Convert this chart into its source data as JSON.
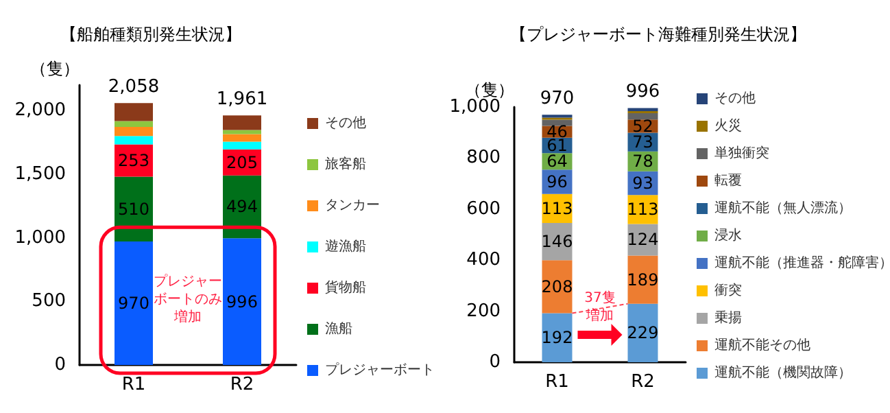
{
  "chart_data": [
    {
      "type": "bar",
      "title": "【船舶種類別発生状況】",
      "ylabel": "（隻）",
      "categories": [
        "R1",
        "R2"
      ],
      "stacked": true,
      "legend": "right",
      "grid": false,
      "series": [
        {
          "name": "プレジャーボート",
          "color": "#0a5cff",
          "values": [
            970,
            996
          ],
          "value_labels": [
            "970",
            "996"
          ]
        },
        {
          "name": "漁船",
          "color": "#00701a",
          "values": [
            510,
            494
          ],
          "value_labels": [
            "510",
            "494"
          ]
        },
        {
          "name": "貨物船",
          "color": "#ff0022",
          "values": [
            253,
            205
          ],
          "value_labels": [
            "253",
            "205"
          ]
        },
        {
          "name": "遊漁船",
          "color": "#00ffff",
          "values": [
            67,
            60
          ]
        },
        {
          "name": "タンカー",
          "color": "#ff8c1a",
          "values": [
            71,
            60
          ]
        },
        {
          "name": "旅客船",
          "color": "#8dc63f",
          "values": [
            46,
            32
          ]
        },
        {
          "name": "その他",
          "color": "#8b3a1a",
          "values": [
            141,
            114
          ]
        }
      ],
      "totals": [
        "2,058",
        "1,961"
      ],
      "ylim": [
        0,
        2200
      ],
      "yticks": [
        0,
        500,
        {
          "value": 1000,
          "label": "1,000"
        },
        {
          "value": 1500,
          "label": "1,500"
        },
        {
          "value": 2000,
          "label": "2,000"
        }
      ],
      "annotations": [
        "プレジャーボートのみ増加"
      ]
    },
    {
      "type": "bar",
      "title": "【プレジャーボート海難種別発生状況】",
      "ylabel": "（隻）",
      "categories": [
        "R1",
        "R2"
      ],
      "stacked": true,
      "legend": "right",
      "grid": false,
      "series": [
        {
          "name": "運航不能（機関故障）",
          "color": "#5b9bd5",
          "values": [
            192,
            229
          ],
          "value_labels": [
            "192",
            "229"
          ]
        },
        {
          "name": "運航不能その他",
          "color": "#ed7d31",
          "values": [
            208,
            189
          ],
          "value_labels": [
            "208",
            "189"
          ]
        },
        {
          "name": "乗揚",
          "color": "#a5a5a5",
          "values": [
            146,
            124
          ],
          "value_labels": [
            "146",
            "124"
          ]
        },
        {
          "name": "衝突",
          "color": "#ffc000",
          "values": [
            113,
            113
          ],
          "value_labels": [
            "113",
            "113"
          ]
        },
        {
          "name": "運航不能（推進器・舵障害）",
          "color": "#4472c4",
          "values": [
            96,
            93
          ],
          "value_labels": [
            "96",
            "93"
          ]
        },
        {
          "name": "浸水",
          "color": "#70ad47",
          "values": [
            64,
            78
          ],
          "value_labels": [
            "64",
            "78"
          ]
        },
        {
          "name": "運航不能（無人漂流）",
          "color": "#255e91",
          "values": [
            61,
            73
          ],
          "value_labels": [
            "61",
            "73"
          ]
        },
        {
          "name": "転覆",
          "color": "#9e480e",
          "values": [
            46,
            52
          ],
          "value_labels": [
            "46",
            "52"
          ]
        },
        {
          "name": "単独衝突",
          "color": "#636363",
          "values": [
            24,
            25
          ]
        },
        {
          "name": "火災",
          "color": "#997300",
          "values": [
            8,
            8
          ]
        },
        {
          "name": "その他",
          "color": "#264478",
          "values": [
            12,
            12
          ]
        }
      ],
      "totals": [
        "970",
        "996"
      ],
      "ylim": [
        0,
        1000
      ],
      "yticks": [
        0,
        200,
        400,
        600,
        800,
        {
          "value": 1000,
          "label": "1,000"
        }
      ],
      "annotations": [
        "37隻増加"
      ]
    }
  ]
}
